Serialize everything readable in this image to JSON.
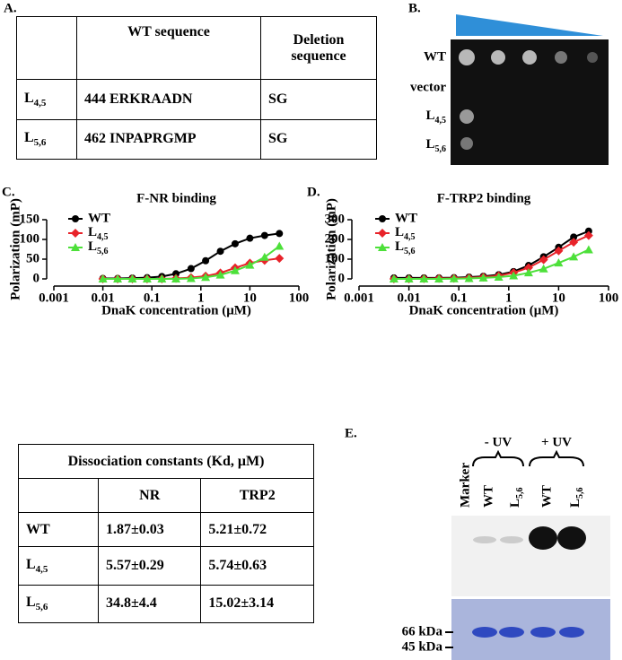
{
  "panel_a": {
    "label": "A.",
    "table": {
      "header": [
        "WT sequence",
        "Deletion sequence"
      ],
      "rows": [
        [
          "L4,5",
          "444 ERKRAADN",
          "SG"
        ],
        [
          "L5,6",
          "462 INPAPRGMP",
          "SG"
        ]
      ]
    }
  },
  "panel_b": {
    "label": "B.",
    "rows": [
      "WT",
      "vector",
      "L4,5",
      "L5,6"
    ]
  },
  "chart_data": [
    {
      "type": "line",
      "label": "C.",
      "title": "F-NR binding",
      "x_label": "DnaK concentration (μM)",
      "y_label": "Polarization (mP)",
      "xscale": "log",
      "xlim": [
        0.001,
        100
      ],
      "xticks": [
        0.001,
        0.01,
        0.1,
        1,
        10,
        100
      ],
      "ylim": [
        0,
        150
      ],
      "yticks": [
        0,
        50,
        100,
        150
      ],
      "x": [
        0.01,
        0.02,
        0.04,
        0.08,
        0.16,
        0.31,
        0.63,
        1.25,
        2.5,
        5,
        10,
        20,
        40
      ],
      "series": [
        {
          "name": "WT",
          "color": "#000000",
          "marker": "circle",
          "values": [
            1,
            1,
            2,
            3,
            6,
            13,
            26,
            46,
            70,
            89,
            103,
            110,
            115
          ]
        },
        {
          "name": "L4,5",
          "color": "#e8232a",
          "marker": "diamond",
          "values": [
            0,
            0,
            0,
            0,
            0,
            1,
            3,
            7,
            15,
            28,
            40,
            47,
            52
          ]
        },
        {
          "name": "L5,6",
          "color": "#4de03a",
          "marker": "triangle",
          "values": [
            0,
            0,
            0,
            0,
            0,
            0,
            1,
            4,
            10,
            21,
            35,
            55,
            83
          ]
        }
      ]
    },
    {
      "type": "line",
      "label": "D.",
      "title": "F-TRP2 binding",
      "x_label": "DnaK concentration (μM)",
      "y_label": "Polarization (mP)",
      "xscale": "log",
      "xlim": [
        0.001,
        100
      ],
      "xticks": [
        0.001,
        0.01,
        0.1,
        1,
        10,
        100
      ],
      "ylim": [
        0,
        300
      ],
      "yticks": [
        0,
        100,
        200,
        300
      ],
      "x": [
        0.005,
        0.01,
        0.02,
        0.04,
        0.08,
        0.16,
        0.31,
        0.63,
        1.25,
        2.5,
        5,
        10,
        20,
        40
      ],
      "series": [
        {
          "name": "WT",
          "color": "#000000",
          "marker": "circle",
          "values": [
            5,
            5,
            5,
            5,
            6,
            9,
            13,
            21,
            37,
            68,
            112,
            160,
            212,
            242
          ]
        },
        {
          "name": "L4,5",
          "color": "#e8232a",
          "marker": "diamond",
          "values": [
            0,
            0,
            1,
            2,
            3,
            5,
            9,
            16,
            31,
            57,
            97,
            142,
            186,
            220
          ]
        },
        {
          "name": "L5,6",
          "color": "#4de03a",
          "marker": "triangle",
          "values": [
            0,
            0,
            0,
            0,
            1,
            2,
            5,
            9,
            16,
            31,
            51,
            81,
            112,
            148
          ]
        }
      ]
    }
  ],
  "panel_kd": {
    "title": "Dissociation constants (Kd, μM)",
    "header": [
      "NR",
      "TRP2"
    ],
    "rows": [
      [
        "WT",
        "1.87±0.03",
        "5.21±0.72"
      ],
      [
        "L4,5",
        "5.57±0.29",
        "5.74±0.63"
      ],
      [
        "L5,6",
        "34.8±4.4",
        "15.02±3.14"
      ]
    ]
  },
  "panel_e": {
    "label": "E.",
    "lanes": [
      "Marker",
      "WT",
      "L5,6",
      "WT",
      "L5,6"
    ],
    "groups": [
      "- UV",
      "+ UV"
    ],
    "markers": [
      "66 kDa",
      "45 kDa"
    ]
  }
}
